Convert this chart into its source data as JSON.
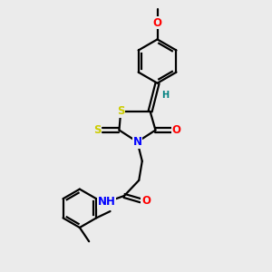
{
  "bg_color": "#ebebeb",
  "bond_color": "#000000",
  "bond_width": 1.6,
  "atom_colors": {
    "O": "#ff0000",
    "N": "#0000ff",
    "S": "#cccc00",
    "H": "#008080",
    "C": "#000000"
  },
  "font_size_atom": 8.5,
  "font_size_small": 7.0,
  "font_size_methyl": 7.5
}
